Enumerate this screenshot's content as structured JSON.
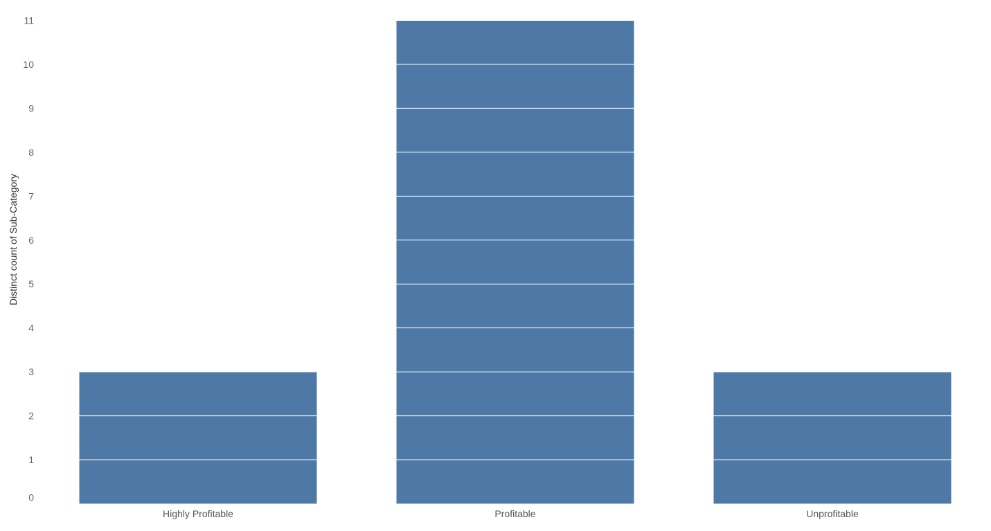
{
  "chart_data": {
    "type": "bar",
    "categories": [
      "Highly Profitable",
      "Profitable",
      "Unprofitable"
    ],
    "values": [
      3,
      11,
      3
    ],
    "title": "",
    "xlabel": "",
    "ylabel": "Distinct count of Sub-Category",
    "ylim": [
      0,
      11
    ],
    "yticks": [
      0,
      1,
      2,
      3,
      4,
      5,
      6,
      7,
      8,
      9,
      10,
      11
    ],
    "stacked_segments_per_unit": true,
    "grid": false,
    "legend": "none",
    "colors": {
      "bar": "#4e79a7",
      "segment_divider": "#ffffff",
      "tick_text": "#666666",
      "axis_title": "#333333"
    }
  }
}
